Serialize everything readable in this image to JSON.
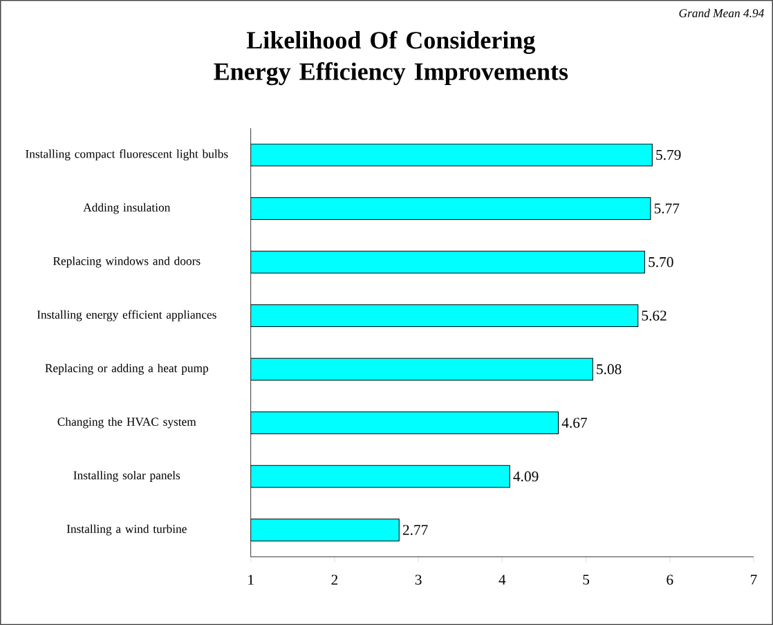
{
  "chart_data": {
    "type": "bar",
    "orientation": "horizontal",
    "title": "Likelihood Of Considering Energy Efficiency Improvements",
    "annotations": [
      "Grand Mean 4.94"
    ],
    "categories": [
      "Installing compact fluorescent light bulbs",
      "Adding insulation",
      "Replacing windows and doors",
      "Installing energy efficient appliances",
      "Replacing or adding a heat pump",
      "Changing the HVAC system",
      "Installing solar panels",
      "Installing a wind turbine"
    ],
    "values": [
      5.79,
      5.77,
      5.7,
      5.62,
      5.08,
      4.67,
      4.09,
      2.77
    ],
    "value_labels": [
      "5.79",
      "5.77",
      "5.70",
      "5.62",
      "5.08",
      "4.67",
      "4.09",
      "2.77"
    ],
    "color": "#00ffff",
    "xlim": [
      1,
      7
    ],
    "xticks": [
      1,
      2,
      3,
      4,
      5,
      6,
      7
    ]
  }
}
